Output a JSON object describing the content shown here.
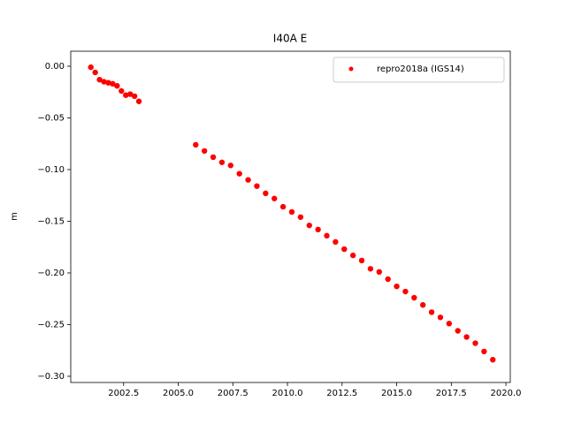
{
  "chart_data": {
    "type": "scatter",
    "title": "I40A E",
    "y_label": "m",
    "x": [
      2001.0,
      2001.2,
      2001.4,
      2001.6,
      2001.8,
      2002.0,
      2002.2,
      2002.4,
      2002.6,
      2002.8,
      2003.0,
      2003.2,
      2005.8,
      2006.2,
      2006.6,
      2007.0,
      2007.4,
      2007.8,
      2008.2,
      2008.6,
      2009.0,
      2009.4,
      2009.8,
      2010.2,
      2010.6,
      2011.0,
      2011.4,
      2011.8,
      2012.2,
      2012.6,
      2013.0,
      2013.4,
      2013.8,
      2014.2,
      2014.6,
      2015.0,
      2015.4,
      2015.8,
      2016.2,
      2016.6,
      2017.0,
      2017.4,
      2017.8,
      2018.2,
      2018.6,
      2019.0,
      2019.4
    ],
    "series": [
      {
        "name": "repro2018a (IGS14)",
        "color": "#ff0000",
        "values": [
          -0.001,
          -0.006,
          -0.013,
          -0.015,
          -0.016,
          -0.017,
          -0.019,
          -0.024,
          -0.028,
          -0.027,
          -0.029,
          -0.034,
          -0.076,
          -0.082,
          -0.088,
          -0.093,
          -0.096,
          -0.104,
          -0.11,
          -0.116,
          -0.123,
          -0.128,
          -0.136,
          -0.141,
          -0.146,
          -0.154,
          -0.158,
          -0.164,
          -0.17,
          -0.177,
          -0.183,
          -0.188,
          -0.196,
          -0.199,
          -0.206,
          -0.213,
          -0.218,
          -0.224,
          -0.231,
          -0.238,
          -0.243,
          -0.249,
          -0.256,
          -0.262,
          -0.268,
          -0.276,
          -0.284
        ]
      }
    ],
    "xlim": [
      2000.08,
      2020.2
    ],
    "ylim": [
      -0.306,
      0.0145
    ],
    "xticks": [
      {
        "value": 2002.5,
        "label": "2002.5"
      },
      {
        "value": 2005,
        "label": "2005.0"
      },
      {
        "value": 2007.5,
        "label": "2007.5"
      },
      {
        "value": 2010,
        "label": "2010.0"
      },
      {
        "value": 2012.5,
        "label": "2012.5"
      },
      {
        "value": 2015,
        "label": "2015.0"
      },
      {
        "value": 2017.5,
        "label": "2017.5"
      },
      {
        "value": 2020,
        "label": "2020.0"
      }
    ],
    "yticks": [
      {
        "value": 0,
        "label": "0.00"
      },
      {
        "value": -0.05,
        "label": "−0.05"
      },
      {
        "value": -0.1,
        "label": "−0.10"
      },
      {
        "value": -0.15,
        "label": "−0.15"
      },
      {
        "value": -0.2,
        "label": "−0.20"
      },
      {
        "value": -0.25,
        "label": "−0.25"
      },
      {
        "value": -0.3,
        "label": "−0.30"
      }
    ],
    "grid": false,
    "legend": "upper right"
  }
}
